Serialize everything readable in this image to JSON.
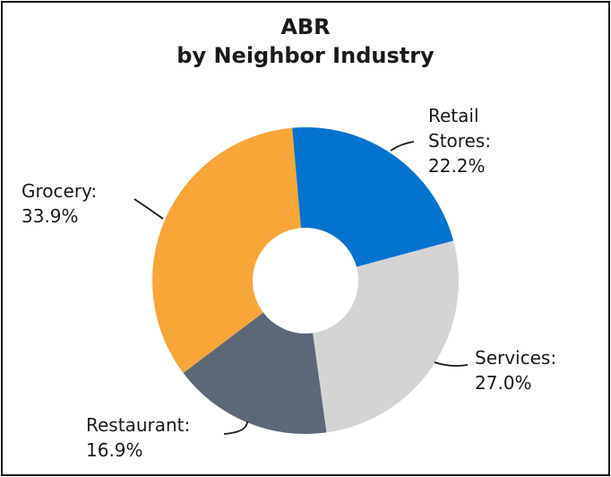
{
  "chart_data": {
    "type": "pie",
    "title": "ABR",
    "subtitle": "by Neighbor Industry",
    "slices": [
      {
        "label": "Retail Stores:",
        "value": 22.2,
        "value_label": "22.2%",
        "color": "#0273cf"
      },
      {
        "label": "Services:",
        "value": 27.0,
        "value_label": "27.0%",
        "color": "#d4d4d4"
      },
      {
        "label": "Restaurant:",
        "value": 16.9,
        "value_label": "16.9%",
        "color": "#5c6878"
      },
      {
        "label": "Grocery:",
        "value": 33.9,
        "value_label": "33.9%",
        "color": "#f7a637"
      }
    ]
  }
}
